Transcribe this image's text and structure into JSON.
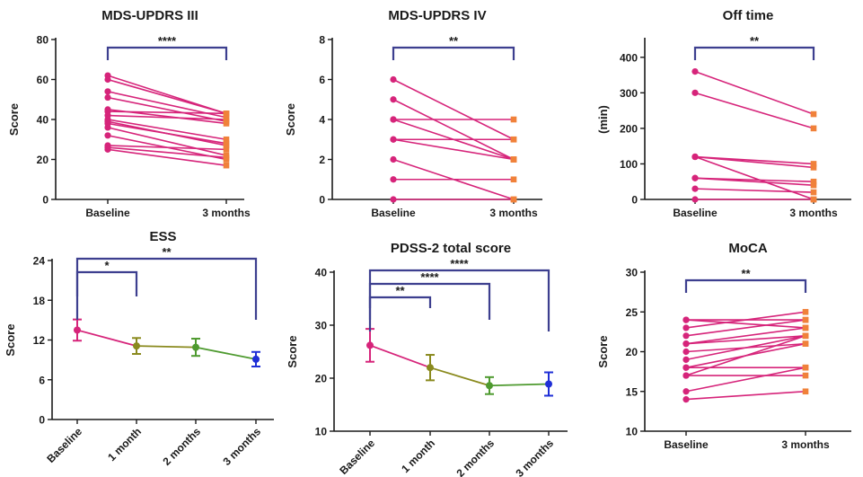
{
  "colors": {
    "line": "#d6247a",
    "marker_baseline": "#d6247a",
    "marker_followup": "#f0813a",
    "axis": "#1a1a1a",
    "bracket": "#3d3f8f",
    "olive": "#8a8a1e",
    "green": "#4e9a2f",
    "blue": "#1f2fd6"
  },
  "chart_data": [
    {
      "type": "line",
      "style": "paired",
      "title": "MDS-UPDRS III",
      "ylabel": "Score",
      "xlabel": "",
      "categories": [
        "Baseline",
        "3 months"
      ],
      "ylim": [
        0,
        80
      ],
      "yticks": [
        0,
        20,
        40,
        60,
        80
      ],
      "pairs": [
        [
          62,
          43
        ],
        [
          60,
          43
        ],
        [
          54,
          41
        ],
        [
          51,
          39
        ],
        [
          45,
          38
        ],
        [
          44,
          43
        ],
        [
          42,
          40
        ],
        [
          40,
          30
        ],
        [
          39,
          27
        ],
        [
          38,
          28
        ],
        [
          36,
          22
        ],
        [
          32,
          20
        ],
        [
          27,
          25
        ],
        [
          26,
          21
        ],
        [
          25,
          17
        ]
      ],
      "annotations": [
        {
          "from": 0,
          "to": 1,
          "label": "****"
        }
      ]
    },
    {
      "type": "line",
      "style": "paired",
      "title": "MDS-UPDRS IV",
      "ylabel": "Score",
      "xlabel": "",
      "categories": [
        "Baseline",
        "3 months"
      ],
      "ylim": [
        0,
        8
      ],
      "yticks": [
        0,
        2,
        4,
        6,
        8
      ],
      "pairs": [
        [
          6,
          3
        ],
        [
          5,
          2
        ],
        [
          4,
          4
        ],
        [
          4,
          2
        ],
        [
          3,
          3
        ],
        [
          3,
          2
        ],
        [
          2,
          0
        ],
        [
          1,
          1
        ],
        [
          0,
          0
        ]
      ],
      "annotations": [
        {
          "from": 0,
          "to": 1,
          "label": "**"
        }
      ]
    },
    {
      "type": "line",
      "style": "paired",
      "title": "Off time",
      "ylabel": "(min)",
      "xlabel": "",
      "categories": [
        "Baseline",
        "3 months"
      ],
      "ylim": [
        0,
        450
      ],
      "yticks": [
        0,
        100,
        200,
        300,
        400
      ],
      "pairs": [
        [
          360,
          240
        ],
        [
          300,
          200
        ],
        [
          120,
          100
        ],
        [
          120,
          90
        ],
        [
          60,
          50
        ],
        [
          60,
          40
        ],
        [
          30,
          20
        ],
        [
          0,
          0
        ],
        [
          120,
          0
        ]
      ],
      "annotations": [
        {
          "from": 0,
          "to": 1,
          "label": "**"
        }
      ]
    },
    {
      "type": "line",
      "style": "mean_error",
      "title": "ESS",
      "ylabel": "Score",
      "xlabel": "",
      "categories": [
        "Baseline",
        "1 month",
        "2 months",
        "3 months"
      ],
      "ylim": [
        0,
        24
      ],
      "yticks": [
        0,
        6,
        12,
        18,
        24
      ],
      "values": [
        13.5,
        11.1,
        10.9,
        9.1
      ],
      "errors": [
        1.6,
        1.2,
        1.3,
        1.1
      ],
      "point_colors": [
        "#d6247a",
        "#8a8a1e",
        "#4e9a2f",
        "#1f2fd6"
      ],
      "annotations": [
        {
          "from": 0,
          "to": 1,
          "label": "*"
        },
        {
          "from": 0,
          "to": 3,
          "label": "**"
        }
      ]
    },
    {
      "type": "line",
      "style": "mean_error",
      "title": "PDSS-2 total score",
      "ylabel": "Score",
      "xlabel": "",
      "categories": [
        "Baseline",
        "1 month",
        "2 months",
        "3 months"
      ],
      "ylim": [
        10,
        40
      ],
      "yticks": [
        10,
        20,
        30,
        40
      ],
      "values": [
        26.2,
        22.0,
        18.6,
        18.9
      ],
      "errors": [
        3.1,
        2.4,
        1.6,
        2.2
      ],
      "point_colors": [
        "#d6247a",
        "#8a8a1e",
        "#4e9a2f",
        "#1f2fd6"
      ],
      "annotations": [
        {
          "from": 0,
          "to": 1,
          "label": "**"
        },
        {
          "from": 0,
          "to": 2,
          "label": "****"
        },
        {
          "from": 0,
          "to": 3,
          "label": "****"
        }
      ]
    },
    {
      "type": "line",
      "style": "paired",
      "title": "MoCA",
      "ylabel": "Score",
      "xlabel": "",
      "categories": [
        "Baseline",
        "3 months"
      ],
      "ylim": [
        10,
        30
      ],
      "yticks": [
        10,
        15,
        20,
        25,
        30
      ],
      "pairs": [
        [
          24,
          24
        ],
        [
          24,
          23
        ],
        [
          23,
          25
        ],
        [
          22,
          24
        ],
        [
          21,
          23
        ],
        [
          21,
          22
        ],
        [
          20,
          21
        ],
        [
          19,
          22
        ],
        [
          18,
          18
        ],
        [
          18,
          21
        ],
        [
          17,
          22
        ],
        [
          17,
          17
        ],
        [
          15,
          18
        ],
        [
          14,
          15
        ]
      ],
      "annotations": [
        {
          "from": 0,
          "to": 1,
          "label": "**"
        }
      ]
    }
  ]
}
